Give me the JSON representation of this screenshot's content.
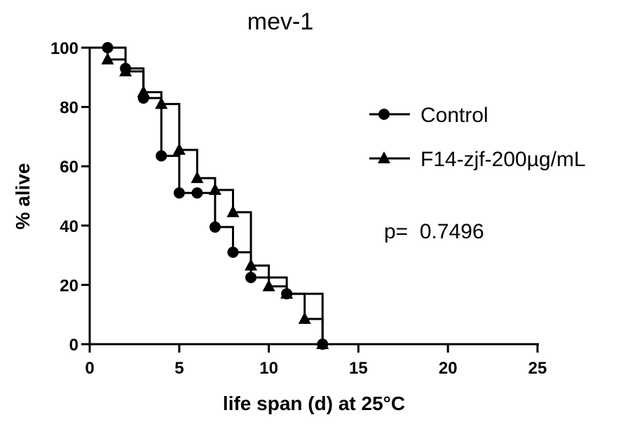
{
  "chart_data": {
    "type": "line",
    "title": "mev-1",
    "xlabel": "life span (d) at 25°C",
    "ylabel": "% alive",
    "xlim": [
      0,
      25
    ],
    "ylim": [
      0,
      100
    ],
    "xticks": [
      0,
      5,
      10,
      15,
      20,
      25
    ],
    "yticks": [
      0,
      20,
      40,
      60,
      80,
      100
    ],
    "grid": false,
    "step": true,
    "legend_position": "right",
    "series": [
      {
        "name": "Control",
        "marker": "circle",
        "x": [
          1,
          2,
          3,
          4,
          5,
          6,
          7,
          8,
          9,
          11,
          13
        ],
        "y": [
          100,
          93,
          83,
          63.5,
          51,
          51,
          39.5,
          31,
          22.5,
          17,
          0
        ]
      },
      {
        "name": "F14-zjf-200µg/mL",
        "marker": "triangle",
        "x": [
          1,
          2,
          3,
          4,
          5,
          6,
          7,
          8,
          9,
          10,
          11,
          12,
          13
        ],
        "y": [
          96,
          92,
          85,
          81,
          65.5,
          56,
          52,
          44.5,
          26.5,
          19.5,
          17,
          8.5,
          0
        ]
      }
    ],
    "annotation": "p=  0.7496"
  }
}
